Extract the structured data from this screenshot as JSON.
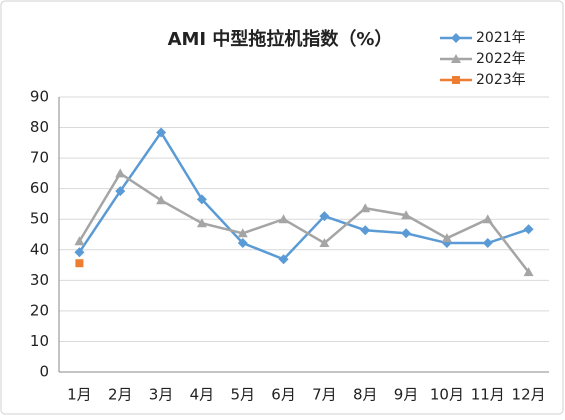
{
  "chart_data": {
    "type": "line",
    "title": "AMI 中型拖拉机指数（%）",
    "categories": [
      "1月",
      "2月",
      "3月",
      "4月",
      "5月",
      "6月",
      "7月",
      "8月",
      "9月",
      "10月",
      "11月",
      "12月"
    ],
    "series": [
      {
        "name": "2021年",
        "color": "#5b9bd5",
        "marker": "diamond",
        "values": [
          39.2,
          59.2,
          78.4,
          56.5,
          42.2,
          36.9,
          51,
          46.4,
          45.4,
          42.2,
          42.2,
          46.7
        ]
      },
      {
        "name": "2022年",
        "color": "#a5a5a5",
        "marker": "triangle",
        "values": [
          42.8,
          65,
          56.2,
          48.7,
          45.4,
          50,
          42.2,
          53.6,
          51.3,
          43.8,
          50,
          32.7
        ]
      },
      {
        "name": "2023年",
        "color": "#ed7d31",
        "marker": "square",
        "values": [
          35.6,
          null,
          null,
          null,
          null,
          null,
          null,
          null,
          null,
          null,
          null,
          null
        ]
      }
    ],
    "ylim": [
      0,
      90
    ],
    "yticks": [
      0,
      10,
      20,
      30,
      40,
      50,
      60,
      70,
      80,
      90
    ],
    "grid": true,
    "legend": "top-right"
  }
}
